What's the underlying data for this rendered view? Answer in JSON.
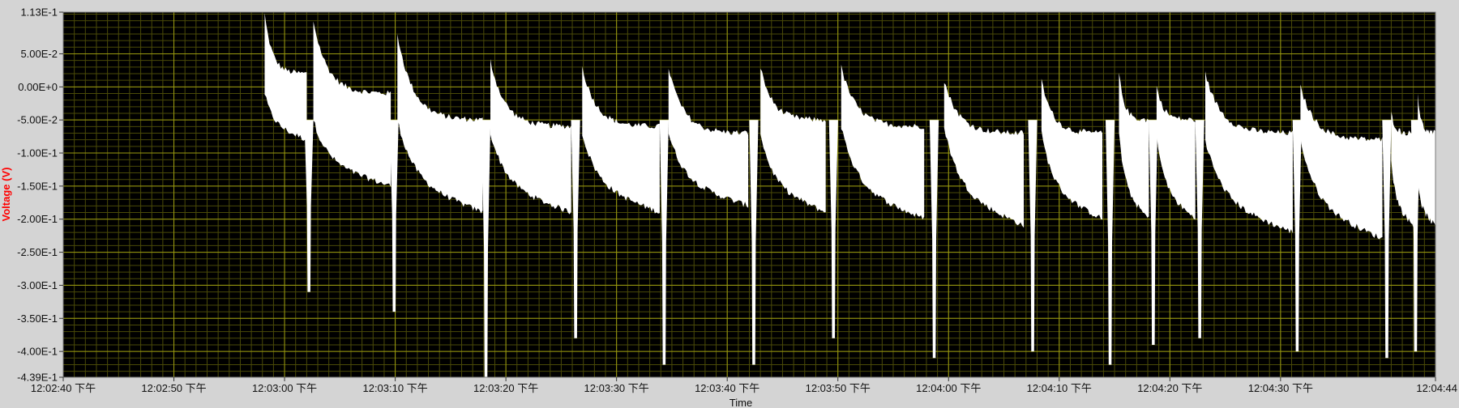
{
  "colors": {
    "background": "#d4d4d4",
    "plot_area": "#000000",
    "major_grid": "#9a9a10",
    "minor_grid": "#4a4a08",
    "trace": "#ffffff",
    "ylabel": "#ff0000"
  },
  "chart_data": {
    "type": "line",
    "title": "",
    "xlabel": "Time",
    "ylabel": "Voltage (V)",
    "grid": true,
    "ylim": [
      -0.439,
      0.113
    ],
    "y_ticks": [
      {
        "value": 0.113,
        "label": "1.13E-1"
      },
      {
        "value": 0.05,
        "label": "5.00E-2"
      },
      {
        "value": 0.0,
        "label": "0.00E+0"
      },
      {
        "value": -0.05,
        "label": "-5.00E-2"
      },
      {
        "value": -0.1,
        "label": "-1.00E-1"
      },
      {
        "value": -0.15,
        "label": "-1.50E-1"
      },
      {
        "value": -0.2,
        "label": "-2.00E-1"
      },
      {
        "value": -0.25,
        "label": "-2.50E-1"
      },
      {
        "value": -0.3,
        "label": "-3.00E-1"
      },
      {
        "value": -0.35,
        "label": "-3.50E-1"
      },
      {
        "value": -0.4,
        "label": "-4.00E-1"
      },
      {
        "value": -0.439,
        "label": "-4.39E-1"
      }
    ],
    "x_range": [
      "12:02:40",
      "12:04:44"
    ],
    "x_ticks": [
      {
        "value": "12:02:40",
        "label": "12:02:40 下午"
      },
      {
        "value": "12:02:50",
        "label": "12:02:50 下午"
      },
      {
        "value": "12:03:00",
        "label": "12:03:00 下午"
      },
      {
        "value": "12:03:10",
        "label": "12:03:10 下午"
      },
      {
        "value": "12:03:20",
        "label": "12:03:20 下午"
      },
      {
        "value": "12:03:30",
        "label": "12:03:30 下午"
      },
      {
        "value": "12:03:40",
        "label": "12:03:40 下午"
      },
      {
        "value": "12:03:50",
        "label": "12:03:50 下午"
      },
      {
        "value": "12:04:00",
        "label": "12:04:00 下午"
      },
      {
        "value": "12:04:10",
        "label": "12:04:10 下午"
      },
      {
        "value": "12:04:20",
        "label": "12:04:20 下午"
      },
      {
        "value": "12:04:30",
        "label": "12:04:30 下午"
      },
      {
        "value": "12:04:44",
        "label": "12:04:44"
      }
    ],
    "series": [
      {
        "segments": [
          {
            "start": "12:02:58.2",
            "end": "12:03:02.0",
            "top_start": 0.11,
            "top_end": 0.02,
            "bottom_start": -0.01,
            "bottom_end": -0.08
          },
          {
            "start": "12:03:02.6",
            "end": "12:03:09.6",
            "top_start": 0.1,
            "top_end": -0.01,
            "bottom_start": -0.05,
            "bottom_end": -0.15
          },
          {
            "start": "12:03:10.2",
            "end": "12:03:17.9",
            "top_start": 0.08,
            "top_end": -0.05,
            "bottom_start": -0.05,
            "bottom_end": -0.19
          },
          {
            "start": "12:03:18.6",
            "end": "12:03:25.9",
            "top_start": 0.04,
            "top_end": -0.06,
            "bottom_start": -0.07,
            "bottom_end": -0.19
          },
          {
            "start": "12:03:26.9",
            "end": "12:03:33.9",
            "top_start": 0.03,
            "top_end": -0.06,
            "bottom_start": -0.07,
            "bottom_end": -0.19
          },
          {
            "start": "12:03:34.7",
            "end": "12:03:41.9",
            "top_start": 0.03,
            "top_end": -0.07,
            "bottom_start": -0.07,
            "bottom_end": -0.18
          },
          {
            "start": "12:03:43.0",
            "end": "12:03:48.9",
            "top_start": 0.03,
            "top_end": -0.05,
            "bottom_start": -0.07,
            "bottom_end": -0.19
          },
          {
            "start": "12:03:50.3",
            "end": "12:03:57.8",
            "top_start": 0.03,
            "top_end": -0.06,
            "bottom_start": -0.06,
            "bottom_end": -0.2
          },
          {
            "start": "12:03:59.6",
            "end": "12:04:06.8",
            "top_start": 0.01,
            "top_end": -0.07,
            "bottom_start": -0.06,
            "bottom_end": -0.21
          },
          {
            "start": "12:04:08.4",
            "end": "12:04:13.9",
            "top_start": 0.01,
            "top_end": -0.07,
            "bottom_start": -0.07,
            "bottom_end": -0.2
          },
          {
            "start": "12:04:15.4",
            "end": "12:04:18.1",
            "top_start": 0.02,
            "top_end": -0.05,
            "bottom_start": -0.07,
            "bottom_end": -0.2
          },
          {
            "start": "12:04:18.8",
            "end": "12:04:22.3",
            "top_start": 0.0,
            "top_end": -0.05,
            "bottom_start": -0.07,
            "bottom_end": -0.2
          },
          {
            "start": "12:04:23.2",
            "end": "12:04:31.1",
            "top_start": 0.02,
            "top_end": -0.07,
            "bottom_start": -0.08,
            "bottom_end": -0.22
          },
          {
            "start": "12:04:31.8",
            "end": "12:04:39.2",
            "top_start": 0.0,
            "top_end": -0.08,
            "bottom_start": -0.08,
            "bottom_end": -0.23
          },
          {
            "start": "12:04:40.0",
            "end": "12:04:42.0",
            "top_start": -0.04,
            "top_end": -0.07,
            "bottom_start": -0.11,
            "bottom_end": -0.21
          },
          {
            "start": "12:04:42.4",
            "end": "12:04:44.0",
            "top_start": -0.01,
            "top_end": -0.07,
            "bottom_start": -0.14,
            "bottom_end": -0.21
          }
        ],
        "dips": [
          {
            "time": "12:03:02.2",
            "min": -0.31
          },
          {
            "time": "12:03:09.9",
            "min": -0.34
          },
          {
            "time": "12:03:18.2",
            "min": -0.439
          },
          {
            "time": "12:03:26.3",
            "min": -0.38
          },
          {
            "time": "12:03:34.3",
            "min": -0.42
          },
          {
            "time": "12:03:42.4",
            "min": -0.42
          },
          {
            "time": "12:03:49.6",
            "min": -0.38
          },
          {
            "time": "12:03:58.7",
            "min": -0.41
          },
          {
            "time": "12:04:07.6",
            "min": -0.4
          },
          {
            "time": "12:04:14.6",
            "min": -0.42
          },
          {
            "time": "12:04:18.5",
            "min": -0.39
          },
          {
            "time": "12:04:22.7",
            "min": -0.38
          },
          {
            "time": "12:04:31.5",
            "min": -0.4
          },
          {
            "time": "12:04:39.6",
            "min": -0.41
          },
          {
            "time": "12:04:42.2",
            "min": -0.4
          }
        ]
      }
    ]
  }
}
